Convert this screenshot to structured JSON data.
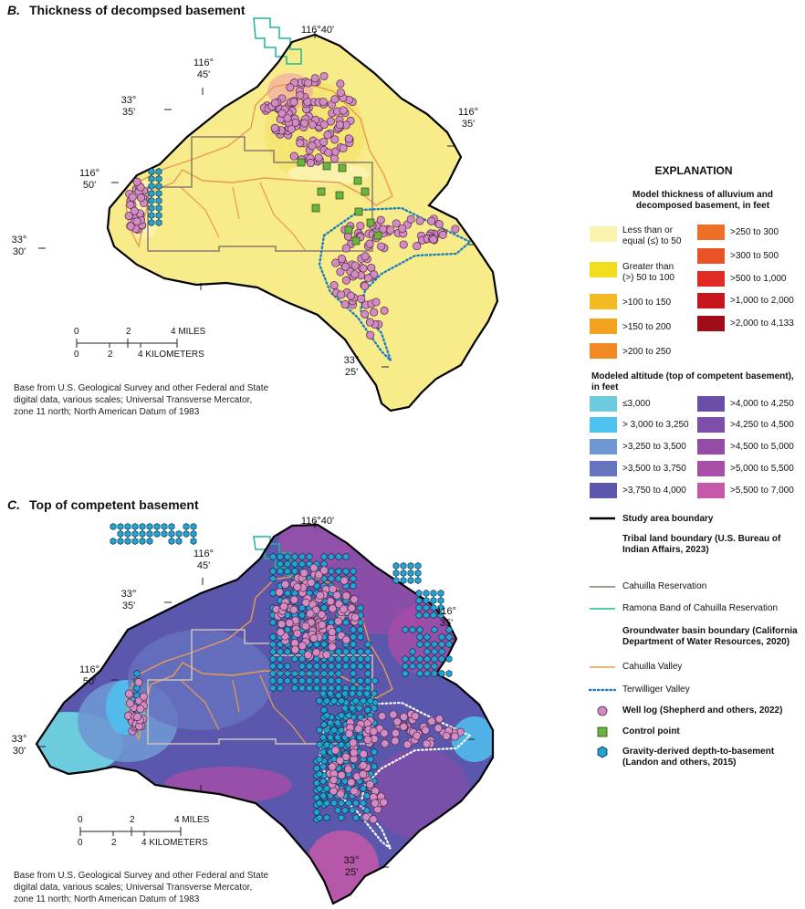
{
  "panel_b": {
    "letter": "B.",
    "title": "Thickness of decompsed basement",
    "coords": {
      "c1": "116°40'",
      "c2": "116°\n45'",
      "c3": "33°\n35'",
      "c4": "116°\n35'",
      "c5": "116°\n50'",
      "c6": "33°\n30'",
      "c7": "33°\n25'"
    },
    "scale": {
      "miles": [
        "0",
        "2",
        "4 MILES"
      ],
      "km": [
        "0",
        "2",
        "4 KILOMETERS"
      ]
    },
    "credit": [
      "Base from U.S. Geological Survey and other Federal and State",
      "digital data, various scales; Universal Transverse Mercator,",
      "zone 11 north; North American Datum of 1983"
    ]
  },
  "panel_c": {
    "letter": "C.",
    "title": "Top of competent basement",
    "coords": {
      "c1": "116°40'",
      "c2": "116°\n45'",
      "c3": "33°\n35'",
      "c4": "116°\n35'",
      "c5": "116°\n50'",
      "c6": "33°\n30'",
      "c7": "33°\n25'"
    },
    "scale": {
      "miles": [
        "0",
        "2",
        "4 MILES"
      ],
      "km": [
        "0",
        "2",
        "4 KILOMETERS"
      ]
    },
    "credit": [
      "Base from U.S. Geological Survey and other Federal and State",
      "digital data, various scales; Universal Transverse Mercator,",
      "zone 11 north; North American Datum of 1983"
    ]
  },
  "explanation": {
    "title": "EXPLANATION",
    "thickness": {
      "heading": [
        "Model thickness of alluvium and",
        "decomposed basement, in feet"
      ],
      "left": [
        {
          "label": [
            "Less than or",
            "equal (≤) to 50"
          ],
          "color": "#fbf3b0"
        },
        {
          "label": [
            "Greater than",
            "(>) 50 to 100"
          ],
          "color": "#f1dc1e"
        },
        {
          "label": [
            ">100 to 150"
          ],
          "color": "#f3bb22"
        },
        {
          "label": [
            ">150 to 200"
          ],
          "color": "#f3a21f"
        },
        {
          "label": [
            ">200 to 250"
          ],
          "color": "#f08a24"
        }
      ],
      "right": [
        {
          "label": [
            ">250 to 300"
          ],
          "color": "#ee7028"
        },
        {
          "label": [
            ">300 to 500"
          ],
          "color": "#ea5327"
        },
        {
          "label": [
            ">500 to 1,000"
          ],
          "color": "#e22a25"
        },
        {
          "label": [
            ">1,000 to 2,000"
          ],
          "color": "#c8161f"
        },
        {
          "label": [
            ">2,000 to 4,133"
          ],
          "color": "#a00d18"
        }
      ]
    },
    "altitude": {
      "heading": [
        "Modeled altitude (top of competent basement), in feet"
      ],
      "left": [
        {
          "label": [
            "≤3,000"
          ],
          "color": "#6ccbdd"
        },
        {
          "label": [
            "> 3,000 to 3,250"
          ],
          "color": "#4ec1ee"
        },
        {
          "label": [
            ">3,250 to 3,500"
          ],
          "color": "#6f98d3"
        },
        {
          "label": [
            ">3,500 to 3,750"
          ],
          "color": "#6673bf"
        },
        {
          "label": [
            ">3,750 to 4,000"
          ],
          "color": "#5b57ad"
        }
      ],
      "right": [
        {
          "label": [
            ">4,000 to 4,250"
          ],
          "color": "#6a4ea8"
        },
        {
          "label": [
            ">4,250 to 4,500"
          ],
          "color": "#7e4ea8"
        },
        {
          "label": [
            ">4,500 to 5,000"
          ],
          "color": "#944ca6"
        },
        {
          "label": [
            ">5,000 to 5,500"
          ],
          "color": "#a84ea8"
        },
        {
          "label": [
            ">5,500 to 7,000"
          ],
          "color": "#c558a8"
        }
      ]
    },
    "lines": {
      "study_area": "Study area boundary",
      "tribal_heading": [
        "Tribal land boundary (U.S. Bureau of",
        "Indian Affairs, 2023)"
      ],
      "cahuilla_res": "Cahuilla Reservation",
      "ramona": "Ramona Band of Cahuilla Reservation",
      "gw_heading": [
        "Groundwater basin boundary (California",
        "Department of Water Resources, 2020)"
      ],
      "cahuilla_valley": "Cahuilla Valley",
      "terwilliger": "Terwilliger Valley",
      "well_log": "Well log (Shepherd and others, 2022)",
      "control_point": "Control point",
      "gravity": [
        "Gravity-derived depth-to-basement",
        "(Landon and others, 2015)"
      ]
    },
    "colors": {
      "study_area": "#000000",
      "cahuilla_res": "#8a7a73",
      "ramona": "#1eb79b",
      "cahuilla_valley": "#e89a54",
      "terwilliger": "#1f7fc0",
      "well_fill": "#d48ac2",
      "control_fill": "#6cb33f",
      "gravity_fill": "#1ea6d6"
    }
  }
}
